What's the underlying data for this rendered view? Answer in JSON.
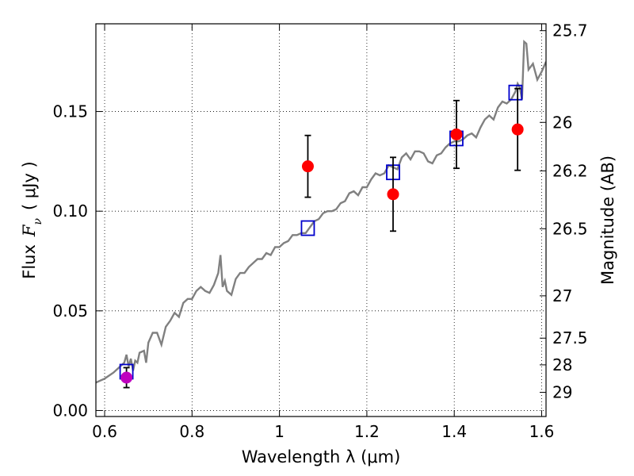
{
  "chart_data": {
    "type": "scatter",
    "title": "",
    "xlabel": "Wavelength  λ (μm)",
    "ylabel": "Flux  F_ν  ( μJy )",
    "ylabel_parts": {
      "flux": "Flux",
      "symbol": "F",
      "subscript": "ν",
      "unit": "( μJy )"
    },
    "ylabel_right": "Magnitude (AB)",
    "xlim": [
      0.58,
      1.61
    ],
    "ylim": [
      -0.003,
      0.194
    ],
    "x_ticks": [
      0.6,
      0.8,
      1.0,
      1.2,
      1.4,
      1.6
    ],
    "x_tick_labels": [
      "0.6",
      "0.8",
      "1",
      "1.2",
      "1.4",
      "1.6"
    ],
    "y_ticks": [
      0.0,
      0.05,
      0.1,
      0.15
    ],
    "y_tick_labels": [
      "0.00",
      "0.05",
      "0.10",
      "0.15"
    ],
    "right_axis_ticks": [
      {
        "label": "25.7",
        "mag": 25.7
      },
      {
        "label": "26",
        "mag": 26
      },
      {
        "label": "26.2",
        "mag": 26.2
      },
      {
        "label": "26.5",
        "mag": 26.5
      },
      {
        "label": "27",
        "mag": 27
      },
      {
        "label": "27.5",
        "mag": 27.5
      },
      {
        "label": "28",
        "mag": 28
      },
      {
        "label": "29",
        "mag": 29
      }
    ],
    "grid": true,
    "series": [
      {
        "kind": "line",
        "color": "#808080",
        "x": [
          0.58,
          0.6,
          0.62,
          0.635,
          0.645,
          0.65,
          0.655,
          0.66,
          0.665,
          0.67,
          0.675,
          0.68,
          0.69,
          0.695,
          0.7,
          0.71,
          0.72,
          0.73,
          0.74,
          0.75,
          0.76,
          0.77,
          0.78,
          0.79,
          0.8,
          0.81,
          0.82,
          0.83,
          0.84,
          0.85,
          0.86,
          0.865,
          0.87,
          0.875,
          0.88,
          0.89,
          0.9,
          0.91,
          0.92,
          0.93,
          0.94,
          0.95,
          0.96,
          0.97,
          0.98,
          0.99,
          1.0,
          1.01,
          1.02,
          1.03,
          1.04,
          1.05,
          1.06,
          1.07,
          1.08,
          1.09,
          1.1,
          1.11,
          1.12,
          1.13,
          1.14,
          1.15,
          1.16,
          1.17,
          1.18,
          1.19,
          1.2,
          1.21,
          1.22,
          1.23,
          1.24,
          1.25,
          1.26,
          1.27,
          1.28,
          1.29,
          1.3,
          1.31,
          1.32,
          1.33,
          1.34,
          1.35,
          1.36,
          1.37,
          1.38,
          1.39,
          1.4,
          1.41,
          1.42,
          1.43,
          1.44,
          1.45,
          1.46,
          1.47,
          1.48,
          1.49,
          1.5,
          1.51,
          1.52,
          1.53,
          1.54,
          1.545,
          1.55,
          1.555,
          1.56,
          1.565,
          1.57,
          1.58,
          1.59,
          1.6,
          1.61
        ],
        "y": [
          0.014,
          0.016,
          0.019,
          0.022,
          0.024,
          0.028,
          0.022,
          0.026,
          0.02,
          0.025,
          0.024,
          0.029,
          0.03,
          0.024,
          0.034,
          0.039,
          0.039,
          0.033,
          0.042,
          0.045,
          0.049,
          0.047,
          0.054,
          0.056,
          0.056,
          0.06,
          0.062,
          0.06,
          0.059,
          0.063,
          0.069,
          0.078,
          0.062,
          0.065,
          0.06,
          0.058,
          0.066,
          0.069,
          0.069,
          0.072,
          0.074,
          0.076,
          0.076,
          0.079,
          0.078,
          0.082,
          0.082,
          0.084,
          0.085,
          0.088,
          0.088,
          0.089,
          0.089,
          0.092,
          0.095,
          0.096,
          0.099,
          0.1,
          0.1,
          0.101,
          0.104,
          0.105,
          0.109,
          0.11,
          0.108,
          0.112,
          0.112,
          0.116,
          0.119,
          0.118,
          0.119,
          0.123,
          0.122,
          0.121,
          0.127,
          0.129,
          0.126,
          0.13,
          0.13,
          0.129,
          0.125,
          0.124,
          0.128,
          0.129,
          0.132,
          0.134,
          0.135,
          0.135,
          0.136,
          0.138,
          0.139,
          0.137,
          0.142,
          0.146,
          0.148,
          0.146,
          0.152,
          0.155,
          0.154,
          0.156,
          0.16,
          0.164,
          0.162,
          0.156,
          0.185,
          0.184,
          0.171,
          0.174,
          0.166,
          0.17,
          0.175
        ]
      },
      {
        "kind": "square-markers",
        "color": "#0000cc",
        "x": [
          0.65,
          1.065,
          1.26,
          1.405,
          1.54
        ],
        "y": [
          0.0195,
          0.0915,
          0.1195,
          0.1365,
          0.1595
        ]
      },
      {
        "kind": "circle-markers-errorbars",
        "color": "#ff0000",
        "x": [
          1.065,
          1.26,
          1.405,
          1.545
        ],
        "y": [
          0.1225,
          0.1085,
          0.1385,
          0.141
        ],
        "yerr": [
          0.0155,
          0.0185,
          0.017,
          0.0205
        ]
      },
      {
        "kind": "circle-marker-errorbar",
        "color": "#bf00bf",
        "x": [
          0.65
        ],
        "y": [
          0.0165
        ],
        "yerr": [
          0.005
        ]
      }
    ]
  }
}
